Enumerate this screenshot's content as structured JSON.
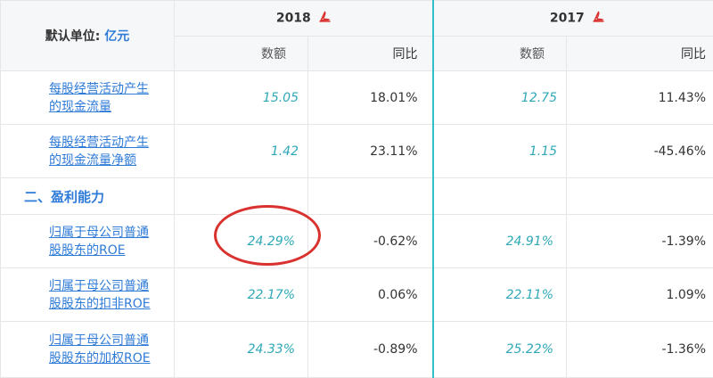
{
  "header": {
    "unit_label": "默认单位:",
    "unit_value": "亿元",
    "years": [
      {
        "label": "2018",
        "icon": "pdf-icon"
      },
      {
        "label": "2017",
        "icon": "pdf-icon"
      }
    ],
    "sub_headers": {
      "amount": "数额",
      "yoy": "同比"
    }
  },
  "rows": [
    {
      "label_line1": "每股经营活动产生",
      "label_line2": "的现金流量",
      "v2018": "15.05",
      "yoy2018": "18.01%",
      "v2017": "12.75",
      "yoy2017": "11.43%"
    },
    {
      "label_line1": "每股经营活动产生",
      "label_line2": "的现金流量净额",
      "v2018": "1.42",
      "yoy2018": "23.11%",
      "v2017": "1.15",
      "yoy2017": "-45.46%"
    }
  ],
  "section": {
    "title": "二、盈利能力"
  },
  "roe_rows": [
    {
      "label_line1": "归属于母公司普通",
      "label_line2": "股股东的ROE",
      "v2018": "24.29%",
      "yoy2018": "-0.62%",
      "v2017": "24.91%",
      "yoy2017": "-1.39%"
    },
    {
      "label_line1": "归属于母公司普通",
      "label_line2": "股股东的扣非ROE",
      "v2018": "22.17%",
      "yoy2018": "0.06%",
      "v2017": "22.11%",
      "yoy2017": "1.09%"
    },
    {
      "label_line1": "归属于母公司普通",
      "label_line2": "股股东的加权ROE",
      "v2018": "24.33%",
      "yoy2018": "-0.89%",
      "v2017": "25.22%",
      "yoy2017": "-1.36%"
    }
  ],
  "colors": {
    "accent_blue": "#2f7bd8",
    "value_teal": "#2ea8b8",
    "column_divider": "#33bfc9",
    "annotation_red": "#d9322e"
  }
}
